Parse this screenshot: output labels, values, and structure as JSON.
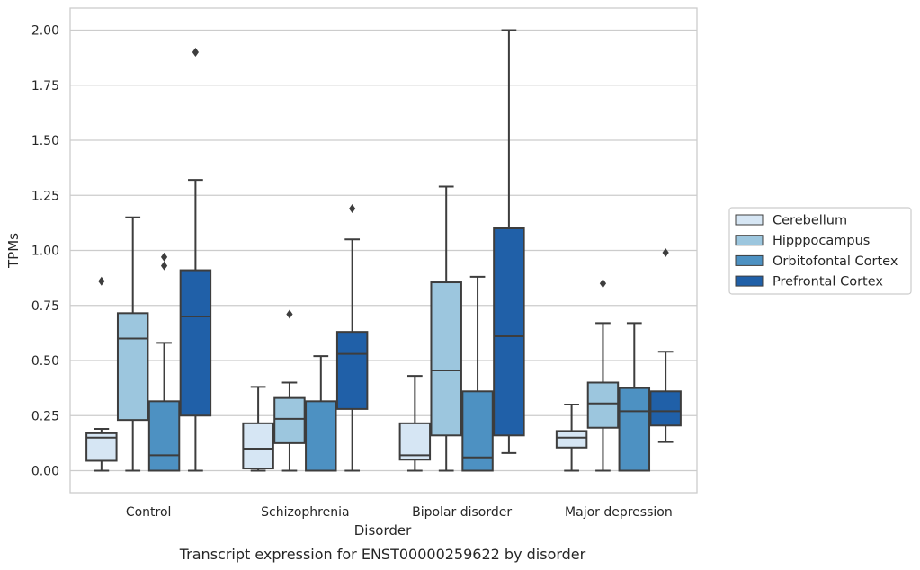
{
  "chart_data": {
    "type": "box",
    "xlabel": "Disorder",
    "ylabel": "TPMs",
    "caption": "Transcript expression for ENST00000259622 by disorder",
    "ylim": [
      -0.1,
      2.1
    ],
    "yticks": [
      "0.00",
      "0.25",
      "0.50",
      "0.75",
      "1.00",
      "1.25",
      "1.50",
      "1.75",
      "2.00"
    ],
    "grid": "horizontal",
    "legend_placement": "right",
    "categories": [
      "Control",
      "Schizophrenia",
      "Bipolar disorder",
      "Major depression"
    ],
    "series": [
      {
        "name": "Cerebellum",
        "color": "#d6e6f4",
        "boxes": [
          {
            "whislo": 0.0,
            "q1": 0.045,
            "med": 0.15,
            "q3": 0.17,
            "whishi": 0.19,
            "fliers": [
              0.86
            ]
          },
          {
            "whislo": 0.0,
            "q1": 0.01,
            "med": 0.1,
            "q3": 0.215,
            "whishi": 0.38,
            "fliers": []
          },
          {
            "whislo": 0.0,
            "q1": 0.05,
            "med": 0.07,
            "q3": 0.215,
            "whishi": 0.43,
            "fliers": []
          },
          {
            "whislo": 0.0,
            "q1": 0.105,
            "med": 0.15,
            "q3": 0.18,
            "whishi": 0.3,
            "fliers": []
          }
        ]
      },
      {
        "name": "Hipppocampus",
        "color": "#9cc6de",
        "boxes": [
          {
            "whislo": 0.0,
            "q1": 0.23,
            "med": 0.6,
            "q3": 0.715,
            "whishi": 1.15,
            "fliers": []
          },
          {
            "whislo": 0.0,
            "q1": 0.125,
            "med": 0.235,
            "q3": 0.33,
            "whishi": 0.4,
            "fliers": [
              0.71
            ]
          },
          {
            "whislo": 0.0,
            "q1": 0.16,
            "med": 0.455,
            "q3": 0.855,
            "whishi": 1.29,
            "fliers": []
          },
          {
            "whislo": 0.0,
            "q1": 0.195,
            "med": 0.305,
            "q3": 0.4,
            "whishi": 0.67,
            "fliers": [
              0.85
            ]
          }
        ]
      },
      {
        "name": "Orbitofontal Cortex",
        "color": "#4d91c2",
        "boxes": [
          {
            "whislo": 0.0,
            "q1": 0.0,
            "med": 0.07,
            "q3": 0.315,
            "whishi": 0.58,
            "fliers": [
              0.93,
              0.97
            ]
          },
          {
            "whislo": 0.0,
            "q1": 0.0,
            "med": 0.0,
            "q3": 0.315,
            "whishi": 0.52,
            "fliers": []
          },
          {
            "whislo": 0.0,
            "q1": 0.0,
            "med": 0.06,
            "q3": 0.36,
            "whishi": 0.88,
            "fliers": []
          },
          {
            "whislo": 0.0,
            "q1": 0.0,
            "med": 0.27,
            "q3": 0.375,
            "whishi": 0.67,
            "fliers": []
          }
        ]
      },
      {
        "name": "Prefrontal Cortex",
        "color": "#2060a8",
        "boxes": [
          {
            "whislo": 0.0,
            "q1": 0.25,
            "med": 0.7,
            "q3": 0.91,
            "whishi": 1.32,
            "fliers": [
              1.9
            ]
          },
          {
            "whislo": 0.0,
            "q1": 0.28,
            "med": 0.53,
            "q3": 0.63,
            "whishi": 1.05,
            "fliers": [
              1.19
            ]
          },
          {
            "whislo": 0.08,
            "q1": 0.16,
            "med": 0.61,
            "q3": 1.1,
            "whishi": 2.0,
            "fliers": []
          },
          {
            "whislo": 0.13,
            "q1": 0.205,
            "med": 0.27,
            "q3": 0.36,
            "whishi": 0.54,
            "fliers": [
              0.99
            ]
          }
        ]
      }
    ]
  }
}
